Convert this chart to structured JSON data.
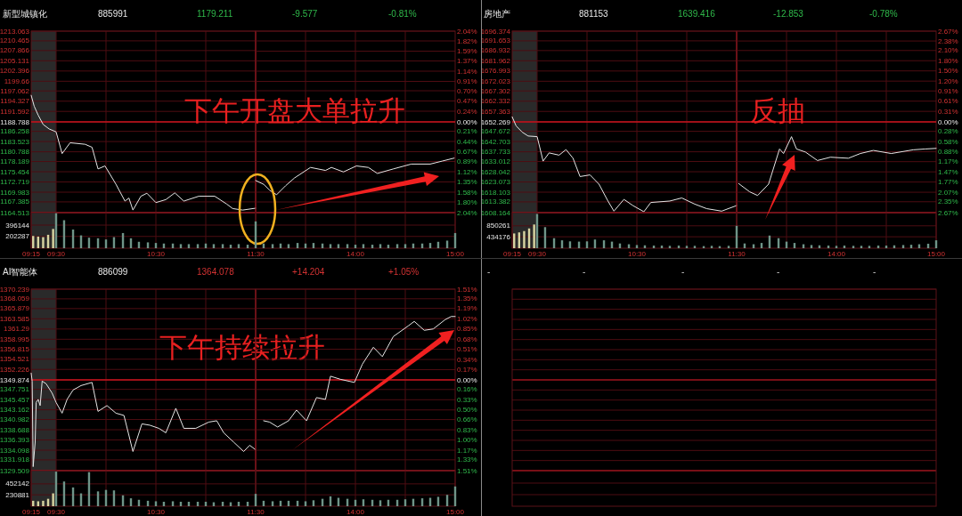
{
  "chart_data": [
    {
      "type": "line",
      "title": "新型城镇化",
      "annotations": [
        "885991",
        "1179.211",
        "-9.577",
        "-0.81%"
      ],
      "series": [
        {
          "color": "#e6e6e6",
          "x": [
            9.25,
            9.28,
            9.32,
            9.37,
            9.43,
            9.5,
            9.56,
            9.64,
            9.79,
            9.86,
            9.92,
            9.99,
            10.1,
            10.19,
            10.23,
            10.27,
            10.35,
            10.41,
            10.5,
            10.6,
            10.69,
            10.78,
            10.93,
            11.09,
            11.21,
            11.27,
            11.37,
            11.5
          ],
          "values": [
            1195.9,
            1193.0,
            1190.6,
            1188.1,
            1186.9,
            1186.1,
            1180.3,
            1183.2,
            1182.8,
            1182.0,
            1176.2,
            1177.0,
            1172.1,
            1167.6,
            1168.4,
            1165.2,
            1168.9,
            1169.7,
            1167.2,
            1168.0,
            1169.8,
            1167.6,
            1168.9,
            1168.9,
            1166.8,
            1165.6,
            1165.2,
            1165.7
          ]
        }
      ],
      "xlim": [
        9.25,
        11.5
      ],
      "xticks": [
        9.5,
        10,
        10.5,
        11
      ],
      "ylim": [
        1164.513,
        1213.063
      ],
      "yticks": [
        1213.063,
        1210.465,
        1207.866,
        1205.131,
        1202.396,
        1199.66,
        1197.062,
        1194.327,
        1191.592,
        1188.788,
        1186.258,
        1183.523,
        1180.788,
        1178.189,
        1175.454,
        1172.719,
        1169.983,
        1167.385,
        1164.513
      ],
      "ref_lines": [
        {
          "axis": "y",
          "value": 1188.788,
          "color": "#c8141e"
        },
        {
          "axis": "x",
          "value": 11.5,
          "color": "#a0141e"
        }
      ],
      "bands": [
        {
          "axis": "x",
          "from": 9.25,
          "to": 9.5,
          "color": "#2a2a2a"
        }
      ],
      "grid": true,
      "tick_labels": "y",
      "line_style": "solid"
    },
    {
      "type": "line",
      "annotations": [
        "下午开盘大单拉升"
      ],
      "series": [
        {
          "color": "#e6e6e6",
          "x": [
            13.0,
            13.08,
            13.14,
            13.21,
            13.3,
            13.39,
            13.55,
            13.7,
            13.76,
            13.88,
            14.01,
            14.13,
            14.22,
            14.38,
            14.56,
            14.75,
            14.87,
            14.99
          ],
          "values": [
            1173.1,
            1172.1,
            1170.5,
            1169.3,
            1171.7,
            1173.8,
            1176.6,
            1175.8,
            1176.6,
            1175.4,
            1177.0,
            1176.6,
            1175.0,
            1176.2,
            1177.5,
            1177.5,
            1178.3,
            1179.1
          ]
        }
      ],
      "xlim": [
        13,
        15
      ],
      "xticks": [
        13.5,
        14,
        14.5
      ],
      "ylim": [
        1164.513,
        1213.063
      ],
      "y2lim": [
        -2.04,
        2.04
      ],
      "y2ticks": [
        {
          "value": 2.04,
          "label": "2.04%"
        },
        {
          "value": 1.82,
          "label": "1.82%"
        },
        {
          "value": 1.59,
          "label": "1.59%"
        },
        {
          "value": 1.37,
          "label": "1.37%"
        },
        {
          "value": 1.14,
          "label": "1.14%"
        },
        {
          "value": 0.91,
          "label": "0.91%"
        },
        {
          "value": 0.7,
          "label": "0.70%"
        },
        {
          "value": 0.47,
          "label": "0.47%"
        },
        {
          "value": 0.24,
          "label": "0.24%"
        },
        {
          "value": 0,
          "label": "0.00%"
        },
        {
          "value": -0.21,
          "label": "0.21%"
        },
        {
          "value": -0.44,
          "label": "0.44%"
        },
        {
          "value": -0.67,
          "label": "0.67%"
        },
        {
          "value": -0.89,
          "label": "0.89%"
        },
        {
          "value": -1.12,
          "label": "1.12%"
        },
        {
          "value": -1.35,
          "label": "1.35%"
        },
        {
          "value": -1.58,
          "label": "1.58%"
        },
        {
          "value": -1.8,
          "label": "1.80%"
        },
        {
          "value": -2.04,
          "label": "2.04%"
        }
      ],
      "ref_lines": [
        {
          "axis": "y",
          "value": 1188.788,
          "color": "#c8141e"
        }
      ],
      "grid": true,
      "tick_labels": "y",
      "line_style": "solid"
    },
    {
      "type": "bar",
      "series": [
        {
          "colors": [
            "#d8d4a0",
            "#d8d4a0",
            "#d8d4a0",
            "#d8d4a0",
            "#d8d4a0",
            "#6f9488",
            "#6f9488",
            "#6f9488",
            "#6f9488",
            "#6f9488",
            "#6f9488",
            "#6f9488",
            "#6f9488",
            "#6f9488",
            "#6f9488",
            "#6f9488",
            "#6f9488",
            "#6f9488",
            "#6f9488",
            "#6f9488",
            "#6f9488",
            "#6f9488",
            "#6f9488",
            "#6f9488",
            "#6f9488",
            "#6f9488",
            "#6f9488",
            "#6f9488",
            "#6f9488",
            "#6f9488"
          ],
          "x": [
            9.27,
            9.32,
            9.37,
            9.42,
            9.47,
            9.5,
            9.58,
            9.67,
            9.75,
            9.83,
            9.92,
            10,
            10.08,
            10.17,
            10.25,
            10.33,
            10.42,
            10.5,
            10.58,
            10.67,
            10.75,
            10.83,
            10.92,
            11,
            11.08,
            11.17,
            11.25,
            11.33,
            11.42,
            11.5
          ],
          "values": [
            210000,
            200000,
            190000,
            230000,
            330000,
            600000,
            480000,
            320000,
            220000,
            180000,
            170000,
            150000,
            190000,
            260000,
            170000,
            110000,
            100000,
            90000,
            80000,
            80000,
            70000,
            70000,
            70000,
            80000,
            70000,
            70000,
            60000,
            70000,
            60000,
            460000
          ]
        }
      ],
      "xlim": [
        9.25,
        11.5
      ],
      "xticks": [
        {
          "value": 9.25,
          "label": "09:15"
        },
        {
          "value": 9.5,
          "label": "09:30"
        },
        {
          "value": 10,
          "label": null
        },
        {
          "value": 10.5,
          "label": "10:30"
        },
        {
          "value": 11,
          "label": null
        },
        {
          "value": 11.5,
          "label": "11:30"
        }
      ],
      "ylim": [
        0,
        610000
      ],
      "yticks": [
        202287,
        396144
      ],
      "bands": [
        {
          "axis": "x",
          "from": 9.25,
          "to": 9.5,
          "color": "#2a2a2a"
        }
      ],
      "grid": true
    },
    {
      "type": "bar",
      "series": [
        {
          "color": "#6f9488",
          "x": [
            13.08,
            13.17,
            13.25,
            13.33,
            13.42,
            13.5,
            13.58,
            13.67,
            13.75,
            13.83,
            13.92,
            14,
            14.08,
            14.17,
            14.25,
            14.33,
            14.42,
            14.5,
            14.58,
            14.67,
            14.75,
            14.83,
            14.92,
            15
          ],
          "values": [
            80000,
            70000,
            80000,
            70000,
            90000,
            80000,
            90000,
            80000,
            70000,
            70000,
            70000,
            60000,
            70000,
            60000,
            70000,
            60000,
            70000,
            70000,
            80000,
            80000,
            90000,
            110000,
            130000,
            260000
          ]
        }
      ],
      "xlim": [
        13,
        15
      ],
      "xticks": [
        {
          "value": 13.5,
          "label": null
        },
        {
          "value": 14,
          "label": "14:00"
        },
        {
          "value": 14.5,
          "label": null
        },
        {
          "value": 15,
          "label": "15:00"
        }
      ],
      "ylim": [
        0,
        610000
      ],
      "yticks": [
        202287,
        396144
      ],
      "grid": true,
      "tick_labels": "x"
    },
    {
      "type": "line",
      "title": "房地产",
      "annotations": [
        "881153",
        "1639.416",
        "-12.853",
        "-0.78%"
      ],
      "series": [
        {
          "color": "#e6e6e6",
          "x": [
            9.25,
            9.29,
            9.35,
            9.41,
            9.5,
            9.56,
            9.62,
            9.72,
            9.79,
            9.86,
            9.93,
            10.03,
            10.12,
            10.21,
            10.27,
            10.37,
            10.46,
            10.57,
            10.64,
            10.83,
            10.95,
            11.08,
            11.2,
            11.35,
            11.5
          ],
          "values": [
            1654.7,
            1650.3,
            1647.3,
            1645.4,
            1645.1,
            1633.2,
            1637.2,
            1636.1,
            1638.8,
            1634.6,
            1625.7,
            1626.5,
            1622.0,
            1613.8,
            1608.9,
            1614.6,
            1611.6,
            1608.6,
            1613.1,
            1613.8,
            1615.3,
            1612.3,
            1610.1,
            1608.9,
            1611.6
          ]
        }
      ],
      "xlim": [
        9.25,
        11.5
      ],
      "xticks": [
        9.5,
        10,
        10.5,
        11
      ],
      "ylim": [
        1608.164,
        1696.374
      ],
      "yticks": [
        1696.374,
        1691.653,
        1686.932,
        1681.962,
        1676.993,
        1672.023,
        1667.302,
        1662.332,
        1657.363,
        1652.269,
        1647.672,
        1642.703,
        1637.733,
        1633.012,
        1628.042,
        1623.073,
        1618.103,
        1613.382,
        1608.164
      ],
      "ref_lines": [
        {
          "axis": "y",
          "value": 1652.269,
          "color": "#c8141e"
        },
        {
          "axis": "x",
          "value": 11.5,
          "color": "#a0141e"
        }
      ],
      "bands": [
        {
          "axis": "x",
          "from": 9.25,
          "to": 9.5,
          "color": "#2a2a2a"
        }
      ],
      "grid": true,
      "tick_labels": "y",
      "line_style": "solid"
    },
    {
      "type": "line",
      "annotations": [
        "反抽"
      ],
      "series": [
        {
          "color": "#e6e6e6",
          "x": [
            13.02,
            13.13,
            13.21,
            13.32,
            13.43,
            13.47,
            13.55,
            13.6,
            13.69,
            13.81,
            13.94,
            14.12,
            14.24,
            14.37,
            14.55,
            14.77,
            14.89,
            15
          ],
          "values": [
            1622.3,
            1618.3,
            1616.5,
            1622.0,
            1639.1,
            1636.9,
            1645.1,
            1639.1,
            1637.6,
            1633.5,
            1635.1,
            1634.6,
            1636.9,
            1638.4,
            1636.9,
            1638.7,
            1639.1,
            1639.4
          ]
        }
      ],
      "xlim": [
        13,
        15
      ],
      "xticks": [
        13.5,
        14,
        14.5
      ],
      "ylim": [
        1608.164,
        1696.374
      ],
      "y2lim": [
        -2.67,
        2.67
      ],
      "y2ticks": [
        {
          "value": 2.67,
          "label": "2.67%"
        },
        {
          "value": 2.38,
          "label": "2.38%"
        },
        {
          "value": 2.1,
          "label": "2.10%"
        },
        {
          "value": 1.8,
          "label": "1.80%"
        },
        {
          "value": 1.5,
          "label": "1.50%"
        },
        {
          "value": 1.2,
          "label": "1.20%"
        },
        {
          "value": 0.91,
          "label": "0.91%"
        },
        {
          "value": 0.61,
          "label": "0.61%"
        },
        {
          "value": 0.31,
          "label": "0.31%"
        },
        {
          "value": 0,
          "label": "0.00%"
        },
        {
          "value": -0.28,
          "label": "0.28%"
        },
        {
          "value": -0.58,
          "label": "0.58%"
        },
        {
          "value": -0.88,
          "label": "0.88%"
        },
        {
          "value": -1.17,
          "label": "1.17%"
        },
        {
          "value": -1.47,
          "label": "1.47%"
        },
        {
          "value": -1.77,
          "label": "1.77%"
        },
        {
          "value": -2.07,
          "label": "2.07%"
        },
        {
          "value": -2.35,
          "label": "2.35%"
        },
        {
          "value": -2.67,
          "label": "2.67%"
        }
      ],
      "ref_lines": [
        {
          "axis": "y",
          "value": 1652.269,
          "color": "#c8141e"
        }
      ],
      "grid": true,
      "tick_labels": "y",
      "line_style": "solid"
    },
    {
      "type": "bar",
      "series": [
        {
          "colors": [
            "#d8d4a0",
            "#d8d4a0",
            "#d8d4a0",
            "#d8d4a0",
            "#d8d4a0",
            "#6f9488",
            "#6f9488",
            "#6f9488",
            "#6f9488",
            "#6f9488",
            "#6f9488",
            "#6f9488",
            "#6f9488",
            "#6f9488",
            "#6f9488",
            "#6f9488",
            "#6f9488",
            "#6f9488",
            "#6f9488",
            "#6f9488",
            "#6f9488",
            "#6f9488",
            "#6f9488",
            "#6f9488",
            "#6f9488",
            "#6f9488",
            "#6f9488",
            "#6f9488",
            "#6f9488",
            "#6f9488"
          ],
          "x": [
            9.27,
            9.32,
            9.37,
            9.42,
            9.47,
            9.5,
            9.58,
            9.67,
            9.75,
            9.83,
            9.92,
            10,
            10.08,
            10.17,
            10.25,
            10.33,
            10.42,
            10.5,
            10.58,
            10.67,
            10.75,
            10.83,
            10.92,
            11,
            11.08,
            11.17,
            11.25,
            11.33,
            11.42,
            11.5
          ],
          "values": [
            560000,
            600000,
            650000,
            750000,
            900000,
            1300000,
            800000,
            380000,
            300000,
            260000,
            250000,
            260000,
            330000,
            300000,
            250000,
            180000,
            150000,
            120000,
            110000,
            100000,
            100000,
            90000,
            100000,
            90000,
            90000,
            80000,
            90000,
            80000,
            90000,
            850000
          ]
        }
      ],
      "xlim": [
        9.25,
        11.5
      ],
      "xticks": [
        {
          "value": 9.25,
          "label": "09:15"
        },
        {
          "value": 9.5,
          "label": "09:30"
        },
        {
          "value": 10,
          "label": null
        },
        {
          "value": 10.5,
          "label": "10:30"
        },
        {
          "value": 11,
          "label": null
        },
        {
          "value": 11.5,
          "label": "11:30"
        }
      ],
      "ylim": [
        0,
        1350000
      ],
      "yticks": [
        434176,
        850261
      ],
      "bands": [
        {
          "axis": "x",
          "from": 9.25,
          "to": 9.5,
          "color": "#2a2a2a"
        }
      ],
      "grid": true
    },
    {
      "type": "bar",
      "series": [
        {
          "color": "#6f9488",
          "x": [
            13.08,
            13.17,
            13.25,
            13.33,
            13.42,
            13.5,
            13.58,
            13.67,
            13.75,
            13.83,
            13.92,
            14,
            14.08,
            14.17,
            14.25,
            14.33,
            14.42,
            14.5,
            14.58,
            14.67,
            14.75,
            14.83,
            14.92,
            15
          ],
          "values": [
            180000,
            150000,
            200000,
            480000,
            380000,
            250000,
            200000,
            150000,
            120000,
            110000,
            100000,
            90000,
            100000,
            90000,
            90000,
            90000,
            100000,
            100000,
            110000,
            120000,
            130000,
            150000,
            170000,
            300000
          ]
        }
      ],
      "xlim": [
        13,
        15
      ],
      "xticks": [
        {
          "value": 13.5,
          "label": null
        },
        {
          "value": 14,
          "label": "14:00"
        },
        {
          "value": 14.5,
          "label": null
        },
        {
          "value": 15,
          "label": "15:00"
        }
      ],
      "ylim": [
        0,
        1350000
      ],
      "yticks": [
        434176,
        850261
      ],
      "grid": true,
      "tick_labels": "x"
    },
    {
      "type": "line",
      "title": "AI智能体",
      "annotations": [
        "886099",
        "1364.078",
        "+14.204",
        "+1.05%",
        "下午持续拉升"
      ],
      "series": [
        {
          "color": "#e6e6e6",
          "x": [
            9.25,
            9.26,
            9.27,
            9.29,
            9.3,
            9.32,
            9.34,
            9.36,
            9.4,
            9.46,
            9.5,
            9.56,
            9.61,
            9.67,
            9.75,
            9.86,
            9.92,
            10.01,
            10.1,
            10.18,
            10.27,
            10.36,
            10.44,
            10.53,
            10.6,
            10.7,
            10.78,
            10.9,
            11.03,
            11.11,
            11.18,
            11.28,
            11.38,
            11.44,
            11.5
          ],
          "values": [
            1351.4,
            1349.6,
            1330.4,
            1335.9,
            1344.8,
            1345.5,
            1344.1,
            1349.6,
            1349.0,
            1346.9,
            1344.8,
            1342.4,
            1345.5,
            1347.6,
            1348.6,
            1349.3,
            1342.8,
            1344.1,
            1342.4,
            1341.9,
            1333.8,
            1340.0,
            1339.7,
            1339.0,
            1338.0,
            1343.5,
            1339.0,
            1339.0,
            1340.4,
            1340.7,
            1338.0,
            1335.9,
            1333.8,
            1335.2,
            1334.2
          ]
        }
      ],
      "xlim": [
        9.25,
        11.5
      ],
      "xticks": [
        9.5,
        10,
        10.5,
        11
      ],
      "ylim": [
        1329.509,
        1370.239
      ],
      "yticks": [
        1370.239,
        1368.059,
        1365.879,
        1363.585,
        1361.29,
        1358.995,
        1356.815,
        1354.521,
        1352.226,
        1349.874,
        1347.751,
        1345.457,
        1343.162,
        1340.982,
        1338.688,
        1336.393,
        1334.098,
        1331.918,
        1329.509
      ],
      "ref_lines": [
        {
          "axis": "y",
          "value": 1349.874,
          "color": "#c8141e"
        },
        {
          "axis": "x",
          "value": 11.5,
          "color": "#a0141e"
        }
      ],
      "bands": [
        {
          "axis": "x",
          "from": 9.25,
          "to": 9.5,
          "color": "#2a2a2a"
        }
      ],
      "grid": true,
      "tick_labels": "y",
      "line_style": "solid"
    },
    {
      "type": "line",
      "series": [
        {
          "color": "#e6e6e6",
          "x": [
            13.08,
            13.14,
            13.22,
            13.33,
            13.41,
            13.51,
            13.61,
            13.7,
            13.75,
            13.85,
            13.99,
            14.07,
            14.18,
            14.27,
            14.38,
            14.53,
            14.59,
            14.69,
            14.78,
            14.9,
            14.96,
            15
          ],
          "values": [
            1340.7,
            1340.4,
            1339.3,
            1340.7,
            1343.1,
            1340.7,
            1345.9,
            1345.5,
            1350.7,
            1350.0,
            1349.3,
            1353.4,
            1357.2,
            1355.1,
            1359.6,
            1362.0,
            1363.0,
            1361.0,
            1361.3,
            1363.4,
            1364.1,
            1364.1
          ]
        }
      ],
      "xlim": [
        13,
        15
      ],
      "xticks": [
        13.5,
        14,
        14.5
      ],
      "ylim": [
        1329.509,
        1370.239
      ],
      "y2lim": [
        -1.51,
        1.51
      ],
      "y2ticks": [
        {
          "value": 1.51,
          "label": "1.51%"
        },
        {
          "value": 1.35,
          "label": "1.35%"
        },
        {
          "value": 1.19,
          "label": "1.19%"
        },
        {
          "value": 1.02,
          "label": "1.02%"
        },
        {
          "value": 0.85,
          "label": "0.85%"
        },
        {
          "value": 0.68,
          "label": "0.68%"
        },
        {
          "value": 0.51,
          "label": "0.51%"
        },
        {
          "value": 0.34,
          "label": "0.34%"
        },
        {
          "value": 0.17,
          "label": "0.17%"
        },
        {
          "value": 0,
          "label": "0.00%"
        },
        {
          "value": -0.16,
          "label": "0.16%"
        },
        {
          "value": -0.33,
          "label": "0.33%"
        },
        {
          "value": -0.5,
          "label": "0.50%"
        },
        {
          "value": -0.66,
          "label": "0.66%"
        },
        {
          "value": -0.83,
          "label": "0.83%"
        },
        {
          "value": -1.0,
          "label": "1.00%"
        },
        {
          "value": -1.17,
          "label": "1.17%"
        },
        {
          "value": -1.33,
          "label": "1.33%"
        },
        {
          "value": -1.51,
          "label": "1.51%"
        }
      ],
      "ref_lines": [
        {
          "axis": "y",
          "value": 1349.874,
          "color": "#c8141e"
        }
      ],
      "grid": true,
      "tick_labels": "y",
      "line_style": "solid"
    },
    {
      "type": "bar",
      "series": [
        {
          "colors": [
            "#d8d4a0",
            "#d8d4a0",
            "#d8d4a0",
            "#d8d4a0",
            "#d8d4a0",
            "#6f9488",
            "#6f9488",
            "#6f9488",
            "#6f9488",
            "#6f9488",
            "#6f9488",
            "#6f9488",
            "#6f9488",
            "#6f9488",
            "#6f9488",
            "#6f9488",
            "#6f9488",
            "#6f9488",
            "#6f9488",
            "#6f9488",
            "#6f9488",
            "#6f9488",
            "#6f9488",
            "#6f9488",
            "#6f9488",
            "#6f9488",
            "#6f9488",
            "#6f9488",
            "#6f9488",
            "#6f9488"
          ],
          "x": [
            9.27,
            9.32,
            9.37,
            9.42,
            9.47,
            9.5,
            9.58,
            9.67,
            9.75,
            9.83,
            9.92,
            10,
            10.08,
            10.17,
            10.25,
            10.33,
            10.42,
            10.5,
            10.58,
            10.67,
            10.75,
            10.83,
            10.92,
            11,
            11.08,
            11.17,
            11.25,
            11.33,
            11.42,
            11.5
          ],
          "values": [
            110000,
            100000,
            110000,
            150000,
            260000,
            700000,
            500000,
            380000,
            260000,
            690000,
            300000,
            330000,
            320000,
            220000,
            160000,
            130000,
            110000,
            100000,
            90000,
            100000,
            90000,
            90000,
            90000,
            90000,
            80000,
            90000,
            80000,
            90000,
            90000,
            250000
          ]
        }
      ],
      "xlim": [
        9.25,
        11.5
      ],
      "xticks": [
        {
          "value": 9.25,
          "label": "09:15"
        },
        {
          "value": 9.5,
          "label": "09:30"
        },
        {
          "value": 10,
          "label": null
        },
        {
          "value": 10.5,
          "label": "10:30"
        },
        {
          "value": 11,
          "label": null
        },
        {
          "value": 11.5,
          "label": "11:30"
        }
      ],
      "ylim": [
        0,
        720000
      ],
      "yticks": [
        230881,
        452142
      ],
      "bands": [
        {
          "axis": "x",
          "from": 9.25,
          "to": 9.5,
          "color": "#2a2a2a"
        }
      ],
      "grid": true
    },
    {
      "type": "bar",
      "series": [
        {
          "color": "#6f9488",
          "x": [
            13.08,
            13.17,
            13.25,
            13.33,
            13.42,
            13.5,
            13.58,
            13.67,
            13.75,
            13.83,
            13.92,
            14,
            14.08,
            14.17,
            14.25,
            14.33,
            14.42,
            14.5,
            14.58,
            14.67,
            14.75,
            14.83,
            14.92,
            15
          ],
          "values": [
            110000,
            100000,
            110000,
            110000,
            110000,
            100000,
            120000,
            150000,
            200000,
            170000,
            150000,
            130000,
            140000,
            130000,
            120000,
            130000,
            130000,
            140000,
            150000,
            160000,
            170000,
            190000,
            230000,
            400000
          ]
        }
      ],
      "xlim": [
        13,
        15
      ],
      "xticks": [
        {
          "value": 13.5,
          "label": null
        },
        {
          "value": 14,
          "label": "14:00"
        },
        {
          "value": 14.5,
          "label": null
        },
        {
          "value": 15,
          "label": "15:00"
        }
      ],
      "ylim": [
        0,
        720000
      ],
      "yticks": [
        230881,
        452142
      ],
      "grid": true,
      "tick_labels": "x"
    },
    {
      "type": "other",
      "annotations": [
        "-",
        "-",
        "-",
        "-",
        "-"
      ]
    }
  ]
}
